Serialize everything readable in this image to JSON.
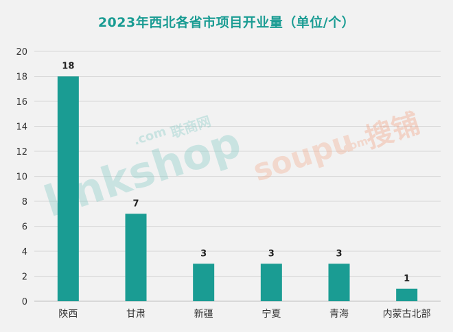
{
  "chart_data": {
    "type": "bar",
    "title": "2023年西北各省市项目开业量（单位/个）",
    "categories": [
      "陕西",
      "甘肃",
      "新疆",
      "宁夏",
      "青海",
      "内蒙古北部"
    ],
    "values": [
      18,
      7,
      3,
      3,
      3,
      1
    ],
    "ylim": [
      0,
      20
    ],
    "yticks": [
      0,
      2,
      4,
      6,
      8,
      10,
      12,
      14,
      16,
      18,
      20
    ],
    "grid": true,
    "bar_color": "#1a9c93",
    "title_color": "#1a9c93"
  },
  "watermarks": {
    "left": "linkshop.com 联商网",
    "right": "soupu.com 搜铺"
  }
}
